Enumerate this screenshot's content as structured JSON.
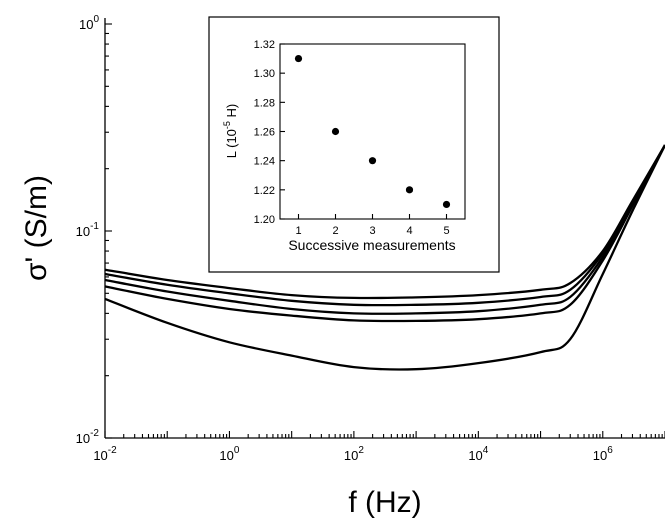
{
  "chart_data": [
    {
      "type": "line",
      "scale": {
        "x": "log",
        "y": "log"
      },
      "xlabel": "f (Hz)",
      "ylabel": "σ' (S/m)",
      "xlim": [
        0.01,
        10000000
      ],
      "ylim": [
        0.01,
        1
      ],
      "x_ticks": [
        {
          "value": 0.01,
          "base": "10",
          "exp": "-2"
        },
        {
          "value": 1,
          "base": "10",
          "exp": "0"
        },
        {
          "value": 100,
          "base": "10",
          "exp": "2"
        },
        {
          "value": 10000,
          "base": "10",
          "exp": "4"
        },
        {
          "value": 1000000,
          "base": "10",
          "exp": "6"
        }
      ],
      "y_ticks": [
        {
          "value": 0.01,
          "base": "10",
          "exp": "-2"
        },
        {
          "value": 0.1,
          "base": "10",
          "exp": "-1"
        },
        {
          "value": 1,
          "base": "10",
          "exp": "0"
        }
      ],
      "series": [
        {
          "x": [
            0.01,
            0.1,
            1,
            10,
            100,
            1000,
            10000,
            100000,
            300000,
            1000000,
            3000000,
            10000000
          ],
          "y": [
            0.065,
            0.058,
            0.053,
            0.049,
            0.0475,
            0.0478,
            0.049,
            0.052,
            0.056,
            0.08,
            0.14,
            0.26
          ]
        },
        {
          "x": [
            0.01,
            0.1,
            1,
            10,
            100,
            1000,
            10000,
            100000,
            300000,
            1000000,
            3000000,
            10000000
          ],
          "y": [
            0.062,
            0.055,
            0.05,
            0.046,
            0.044,
            0.044,
            0.045,
            0.048,
            0.052,
            0.078,
            0.138,
            0.26
          ]
        },
        {
          "x": [
            0.01,
            0.1,
            1,
            10,
            100,
            1000,
            10000,
            100000,
            300000,
            1000000,
            3000000,
            10000000
          ],
          "y": [
            0.058,
            0.051,
            0.046,
            0.042,
            0.04,
            0.04,
            0.041,
            0.044,
            0.048,
            0.075,
            0.135,
            0.26
          ]
        },
        {
          "x": [
            0.01,
            0.1,
            1,
            10,
            100,
            1000,
            10000,
            100000,
            300000,
            1000000,
            3000000,
            10000000
          ],
          "y": [
            0.054,
            0.047,
            0.042,
            0.039,
            0.037,
            0.0368,
            0.0375,
            0.04,
            0.044,
            0.072,
            0.132,
            0.26
          ]
        },
        {
          "x": [
            0.01,
            0.1,
            1,
            10,
            100,
            1000,
            10000,
            100000,
            300000,
            1000000,
            3000000,
            10000000
          ],
          "y": [
            0.047,
            0.036,
            0.029,
            0.025,
            0.022,
            0.0215,
            0.023,
            0.026,
            0.03,
            0.062,
            0.125,
            0.26
          ]
        }
      ]
    },
    {
      "type": "scatter",
      "xlabel": "Successive measurements",
      "ylabel": "L (10",
      "ylabel_exp": "-5",
      "ylabel_unit": " H)",
      "xlim": [
        0.5,
        5.5
      ],
      "ylim": [
        1.2,
        1.32
      ],
      "x_ticks": [
        "1",
        "2",
        "3",
        "4",
        "5"
      ],
      "y_ticks": [
        "1.20",
        "1.22",
        "1.24",
        "1.26",
        "1.28",
        "1.30",
        "1.32"
      ],
      "points": {
        "x": [
          1,
          2,
          3,
          4,
          5
        ],
        "y": [
          1.31,
          1.26,
          1.24,
          1.22,
          1.21
        ]
      }
    }
  ]
}
